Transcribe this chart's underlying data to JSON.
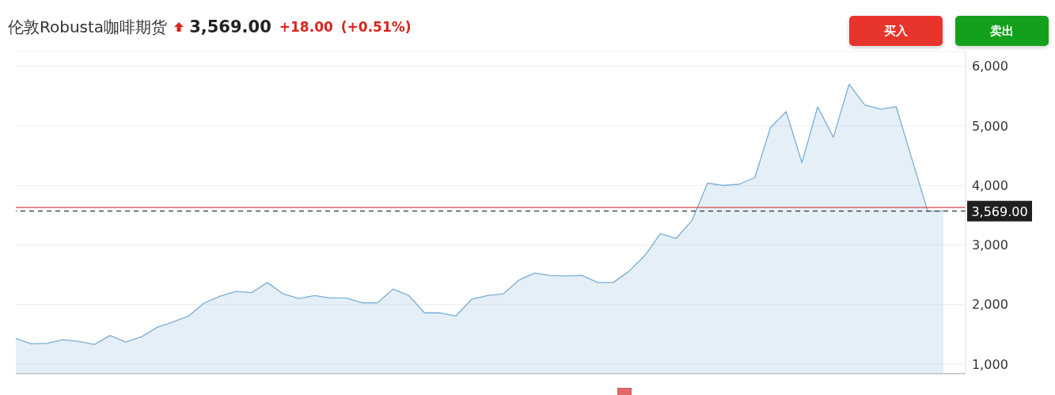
{
  "chart_data": {
    "type": "area",
    "title": "伦敦Robusta咖啡期货",
    "subtitle": "3,569.00",
    "annotations": [
      "+18.00",
      "(+0.51%)",
      "买入",
      "卖出"
    ],
    "categories": [
      null,
      null,
      null,
      null,
      null,
      null,
      null,
      null,
      null,
      null,
      null,
      null,
      null,
      null,
      null,
      null,
      null,
      null,
      null,
      null,
      null,
      null,
      null,
      null,
      null,
      null,
      null,
      null,
      null,
      null,
      null,
      null,
      null,
      null,
      null,
      null,
      null,
      null,
      null,
      null,
      null,
      null,
      null,
      null,
      null,
      null,
      null,
      null,
      null,
      null,
      null,
      null,
      null,
      null,
      null,
      null,
      null,
      null,
      null,
      null
    ],
    "series": [
      {
        "color": "#7aaed6",
        "values": [
          1430,
          1340,
          1350,
          1410,
          1380,
          1330,
          1480,
          1370,
          1460,
          1620,
          1710,
          1810,
          2030,
          2140,
          2220,
          2200,
          2370,
          2180,
          2100,
          2150,
          2110,
          2110,
          2030,
          2030,
          2260,
          2150,
          1860,
          1860,
          1810,
          2090,
          2150,
          2180,
          2410,
          2530,
          2490,
          2480,
          2490,
          2370,
          2370,
          2560,
          2820,
          3190,
          3110,
          3410,
          4040,
          4000,
          4020,
          4130,
          4970,
          5240,
          4380,
          5320,
          4810,
          5700,
          5350,
          5280,
          5320,
          4440,
          3570,
          3570
        ]
      }
    ],
    "ylim": [
      840,
      6250
    ],
    "yticks": [
      {
        "value": 1000,
        "label": "1,000"
      },
      {
        "value": 2000,
        "label": "2,000"
      },
      {
        "value": 3000,
        "label": "3,000"
      },
      {
        "value": 4000,
        "label": "4,000"
      },
      {
        "value": 5000,
        "label": "5,000"
      },
      {
        "value": 6000,
        "label": "6,000"
      }
    ],
    "grid": "y",
    "legend": false,
    "ref_lines": [
      {
        "axis": "y",
        "value": 3630,
        "color": "#e0474c",
        "line_style": "solid"
      },
      {
        "axis": "y",
        "value": 3569,
        "label": "3,569.00",
        "color": "#333333",
        "line_style": "dashed"
      }
    ]
  }
}
